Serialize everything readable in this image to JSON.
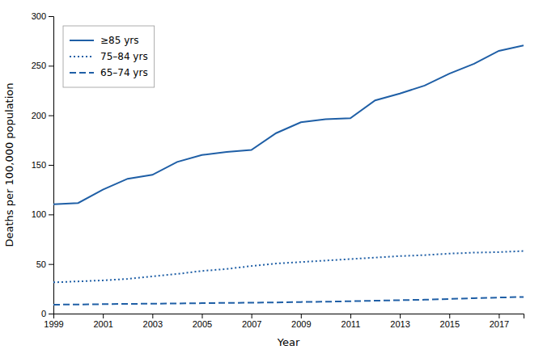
{
  "chart_data": {
    "type": "line",
    "x": [
      1999,
      2000,
      2001,
      2002,
      2003,
      2004,
      2005,
      2006,
      2007,
      2008,
      2009,
      2010,
      2011,
      2012,
      2013,
      2014,
      2015,
      2016,
      2017,
      2018
    ],
    "series": [
      {
        "name": "≥85 yrs",
        "color": "#1f5fa6",
        "line_style": "solid",
        "values": [
          110.2,
          111.5,
          125.0,
          136.0,
          140.0,
          153.0,
          160.0,
          163.0,
          165.0,
          182.0,
          193.0,
          196.0,
          197.0,
          215.0,
          222.0,
          230.0,
          242.0,
          252.0,
          265.0,
          270.5
        ]
      },
      {
        "name": "75–84 yrs",
        "color": "#1f5fa6",
        "line_style": "dotted",
        "values": [
          31.5,
          32.5,
          33.5,
          35.0,
          37.5,
          40.0,
          43.0,
          45.0,
          48.0,
          50.5,
          52.0,
          53.5,
          55.0,
          56.5,
          58.0,
          59.0,
          60.5,
          61.5,
          62.0,
          63.1
        ]
      },
      {
        "name": "65–74 yrs",
        "color": "#1f5fa6",
        "line_style": "dashed",
        "values": [
          9.0,
          9.2,
          9.5,
          9.8,
          10.0,
          10.2,
          10.5,
          10.8,
          11.0,
          11.3,
          11.7,
          12.0,
          12.5,
          13.0,
          13.5,
          14.0,
          14.8,
          15.5,
          16.2,
          16.8
        ]
      }
    ],
    "xlabel": "Year",
    "ylabel": "Deaths per 100,000 population",
    "xlim": [
      1999,
      2018
    ],
    "xticks": [
      1999,
      2001,
      2003,
      2005,
      2007,
      2009,
      2011,
      2013,
      2015,
      2017
    ],
    "ylim": [
      0,
      300
    ],
    "yticks": [
      0,
      50,
      100,
      150,
      200,
      250,
      300
    ],
    "grid": false,
    "legend": "upper left"
  }
}
